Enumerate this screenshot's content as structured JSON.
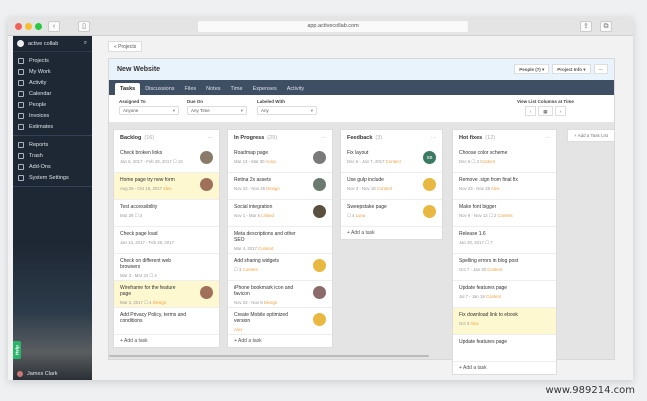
{
  "browser": {
    "url": "app.activecollab.com"
  },
  "sidebar": {
    "brand": "active collab",
    "items": [
      "Projects",
      "My Work",
      "Activity",
      "Calendar",
      "People",
      "Invoices",
      "Estimates"
    ],
    "items2": [
      "Reports",
      "Trash",
      "Add-Ons",
      "System Settings"
    ],
    "user": "James Clark",
    "help": "Help"
  },
  "main": {
    "projects_btn": "« Projects",
    "title": "New Website",
    "people_btn": "People (7) ▾",
    "info_btn": "Project Info ▾",
    "more_btn": "···",
    "tabs": [
      "Tasks",
      "Discussions",
      "Files",
      "Notes",
      "Time",
      "Expenses",
      "Activity"
    ],
    "filters": {
      "assigned_label": "Assigned To",
      "assigned": "Anyone",
      "due_label": "Due On",
      "due": "Any Time",
      "labeled_label": "Labeled With",
      "labeled": "Any",
      "view_label": "View List Columns at Time"
    },
    "add_list": "+ Add a Task List",
    "add_task": "+ Add a task"
  },
  "columns": [
    {
      "name": "Backlog",
      "count": "(16)",
      "cards": [
        {
          "t": "Check broken links",
          "m": "Jan 6, 2017 - Feb 28, 2017 ☐ 13",
          "a": "#8a7a6a"
        },
        {
          "t": "Home page try new form",
          "m": "Aug 25 - Oct 15, 2017",
          "l": "Alex",
          "hl": true,
          "a": "#a0705a"
        },
        {
          "t": "Test accessibility",
          "m": "Mar 28 ☐ 3"
        },
        {
          "t": "Check page load",
          "m": "Jan 13, 2017 - Feb 28, 2017"
        },
        {
          "t": "Check on different web browsers",
          "m": "Mar 3 - Mar 23 ☐ 4"
        },
        {
          "t": "Wireframe for the feature page",
          "m": "Mar 3, 2017 ☐ 4",
          "l": "Design",
          "hl": true,
          "a": "#a0705a"
        },
        {
          "t": "Add Privacy Policy, terms and conditions",
          "m": ""
        }
      ]
    },
    {
      "name": "In Progress",
      "count": "(29)",
      "cards": [
        {
          "t": "Roadmap page",
          "m": "Mar 13 - Mar 30",
          "l": "Anna",
          "a": "#7a7a7a"
        },
        {
          "t": "Retina 2x assets",
          "m": "Nov 22 - Nov 25",
          "l": "Design",
          "a": "#6a7a70"
        },
        {
          "t": "Social integration",
          "m": "Nov 1 - Mar 6",
          "l": "Linked",
          "a": "#5a5040"
        },
        {
          "t": "Meta descriptions and other SEO",
          "m": "Mar 4, 2017",
          "l": "Content"
        },
        {
          "t": "Add sharing widgets",
          "m": "☐ 3",
          "l": "Content",
          "a": "#e8b840"
        },
        {
          "t": "iPhone bookmark icon and favicon",
          "m": "Nov 22 - Nov 8",
          "l": "Design",
          "a": "#8a6a6a"
        },
        {
          "t": "Create Mobile optimized version",
          "m": "",
          "l": "Alex",
          "a": "#e8b840"
        }
      ]
    },
    {
      "name": "Feedback",
      "count": "(3)",
      "cards": [
        {
          "t": "Fix layout",
          "m": "Dec 6 - Jan 7, 2017",
          "l": "Content",
          "a": "#3a7a60",
          "ai": "SB"
        },
        {
          "t": "Use gulp include",
          "m": "Nov 3 - Nov 18",
          "l": "Content",
          "a": "#e8b840"
        },
        {
          "t": "Sweepstake page",
          "m": "☐ 4",
          "l": "Luna",
          "a": "#e8b840"
        }
      ]
    },
    {
      "name": "Hot fixes",
      "count": "(12)",
      "cards": [
        {
          "t": "Choose color scheme",
          "m": "Dec 6 ☐ 3",
          "l": "Content"
        },
        {
          "t": "Remove .sign from final fix",
          "m": "Nov 23 - Nov 28",
          "l": "Alex"
        },
        {
          "t": "Make font bigger",
          "m": "Nov 8 - Nov 12 ☐ 2",
          "l": "Content"
        },
        {
          "t": "Release 1.6",
          "m": "Jan 20, 2017 ☐ 7"
        },
        {
          "t": "Spelling errors in blog post",
          "m": "Oct 7 - Jan 30",
          "l": "Content"
        },
        {
          "t": "Update features page",
          "m": "Jul 7 - Jan 19",
          "l": "Content"
        },
        {
          "t": "Fix download link to ebook",
          "m": "Oct 3",
          "l": "Alex",
          "hl": true
        },
        {
          "t": "Update features page",
          "m": ""
        }
      ]
    }
  ],
  "watermark": "www.989214.com"
}
